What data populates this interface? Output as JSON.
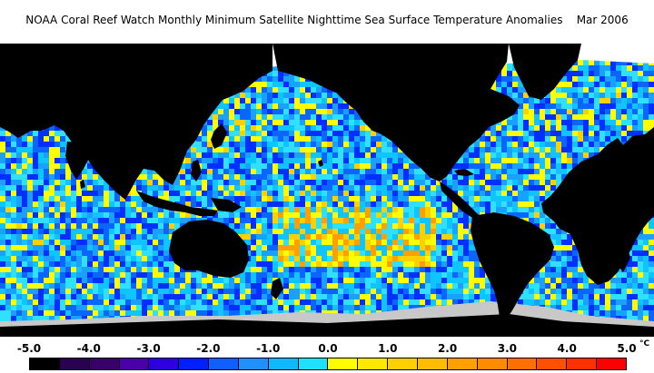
{
  "title": "NOAA Coral Reef Watch Monthly Minimum Satellite Nighttime Sea Surface Temperature Anomalies    Mar 2006",
  "legend": {
    "tick_labels": [
      "-5.0",
      "-4.0",
      "-3.0",
      "-2.0",
      "-1.0",
      "0.0",
      "1.0",
      "2.0",
      "3.0",
      "4.0",
      "5.0"
    ],
    "unit": "°C",
    "colors": [
      "#000000",
      "#2a0050",
      "#3a006a",
      "#4a00a8",
      "#2e00e0",
      "#0020ff",
      "#1060ff",
      "#2090ff",
      "#10b8ff",
      "#20e0ff",
      "#ffff00",
      "#ffe800",
      "#ffd000",
      "#ffbc00",
      "#ffa000",
      "#ff8c00",
      "#ff7000",
      "#ff5000",
      "#ff3000",
      "#ff0000"
    ]
  },
  "map": {
    "land_color": "#000000",
    "ice_color": "#ffffff",
    "no_data_color": "#c8c8c8",
    "ocean_anomaly_palette": [
      "#0030ff",
      "#0a66ff",
      "#1aa0ff",
      "#10c4ff",
      "#30e0ff",
      "#ffff00",
      "#ffd000",
      "#ffa000",
      "#ff6000"
    ]
  }
}
